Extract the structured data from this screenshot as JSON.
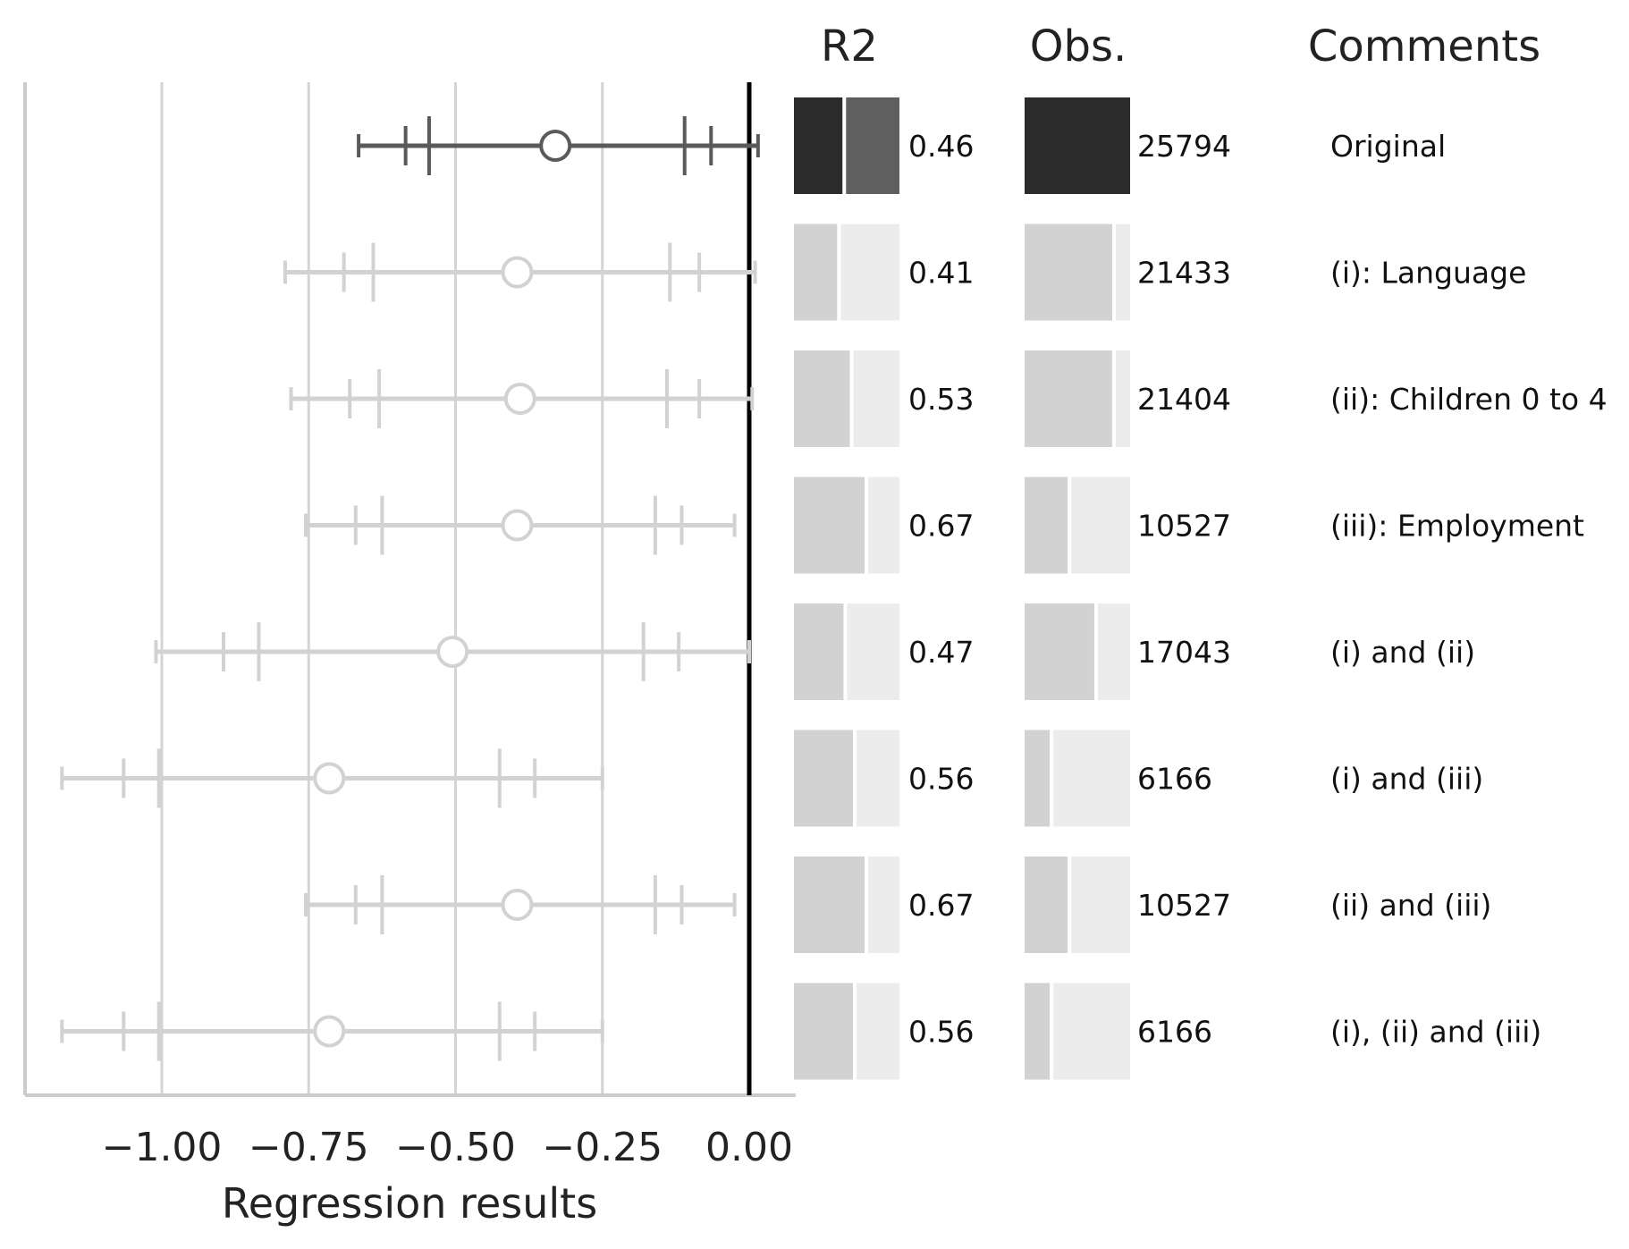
{
  "chart_data": {
    "type": "forest-plot-table",
    "xlabel": "Regression results",
    "xlim": [
      -1.22,
      0.06
    ],
    "x_ticks": [
      -1.0,
      -0.75,
      -0.5,
      -0.25,
      0.0
    ],
    "x_tick_labels": [
      "−1.00",
      "−0.75",
      "−0.50",
      "−0.25",
      "0.00"
    ],
    "reference_line_x": 0.0,
    "column_headers": {
      "r2": "R2",
      "obs": "Obs.",
      "comments": "Comments"
    },
    "obs_max": 25794,
    "colors": {
      "highlight_line": "#5a5a5a",
      "highlight_bar_dark": "#2b2b2b",
      "highlight_bar_mid": "#5f5f5f",
      "muted_line": "#d2d2d2",
      "muted_bar": "#d2d2d2",
      "bar_background": "#ececec",
      "gridline": "#d4d4d4",
      "zero_line": "#000000"
    },
    "rows": [
      {
        "estimate": -0.33,
        "ci_outer": [
          -0.665,
          0.015
        ],
        "ci_mid": [
          -0.585,
          -0.065
        ],
        "ci_inner": [
          -0.545,
          -0.11
        ],
        "r2": 0.46,
        "r2_label": "0.46",
        "obs": 25794,
        "obs_label": "25794",
        "comment": "Original",
        "highlight": true
      },
      {
        "estimate": -0.395,
        "ci_outer": [
          -0.79,
          0.01
        ],
        "ci_mid": [
          -0.69,
          -0.085
        ],
        "ci_inner": [
          -0.64,
          -0.135
        ],
        "r2": 0.41,
        "r2_label": "0.41",
        "obs": 21433,
        "obs_label": "21433",
        "comment": "(i): Language",
        "highlight": false
      },
      {
        "estimate": -0.39,
        "ci_outer": [
          -0.78,
          0.005
        ],
        "ci_mid": [
          -0.68,
          -0.085
        ],
        "ci_inner": [
          -0.63,
          -0.14
        ],
        "r2": 0.53,
        "r2_label": "0.53",
        "obs": 21404,
        "obs_label": "21404",
        "comment": "(ii): Children 0 to 4",
        "highlight": false
      },
      {
        "estimate": -0.395,
        "ci_outer": [
          -0.755,
          -0.025
        ],
        "ci_mid": [
          -0.67,
          -0.115
        ],
        "ci_inner": [
          -0.625,
          -0.16
        ],
        "r2": 0.67,
        "r2_label": "0.67",
        "obs": 10527,
        "obs_label": "10527",
        "comment": "(iii): Employment",
        "highlight": false
      },
      {
        "estimate": -0.505,
        "ci_outer": [
          -1.01,
          0.0
        ],
        "ci_mid": [
          -0.895,
          -0.12
        ],
        "ci_inner": [
          -0.835,
          -0.18
        ],
        "r2": 0.47,
        "r2_label": "0.47",
        "obs": 17043,
        "obs_label": "17043",
        "comment": "(i) and (ii)",
        "highlight": false
      },
      {
        "estimate": -0.715,
        "ci_outer": [
          -1.17,
          -0.25
        ],
        "ci_mid": [
          -1.065,
          -0.365
        ],
        "ci_inner": [
          -1.005,
          -0.425
        ],
        "r2": 0.56,
        "r2_label": "0.56",
        "obs": 6166,
        "obs_label": "6166",
        "comment": "(i) and (iii)",
        "highlight": false
      },
      {
        "estimate": -0.395,
        "ci_outer": [
          -0.755,
          -0.025
        ],
        "ci_mid": [
          -0.67,
          -0.115
        ],
        "ci_inner": [
          -0.625,
          -0.16
        ],
        "r2": 0.67,
        "r2_label": "0.67",
        "obs": 10527,
        "obs_label": "10527",
        "comment": "(ii) and (iii)",
        "highlight": false
      },
      {
        "estimate": -0.715,
        "ci_outer": [
          -1.17,
          -0.25
        ],
        "ci_mid": [
          -1.065,
          -0.365
        ],
        "ci_inner": [
          -1.005,
          -0.425
        ],
        "r2": 0.56,
        "r2_label": "0.56",
        "obs": 6166,
        "obs_label": "6166",
        "comment": "(i), (ii) and (iii)",
        "highlight": false
      }
    ]
  }
}
